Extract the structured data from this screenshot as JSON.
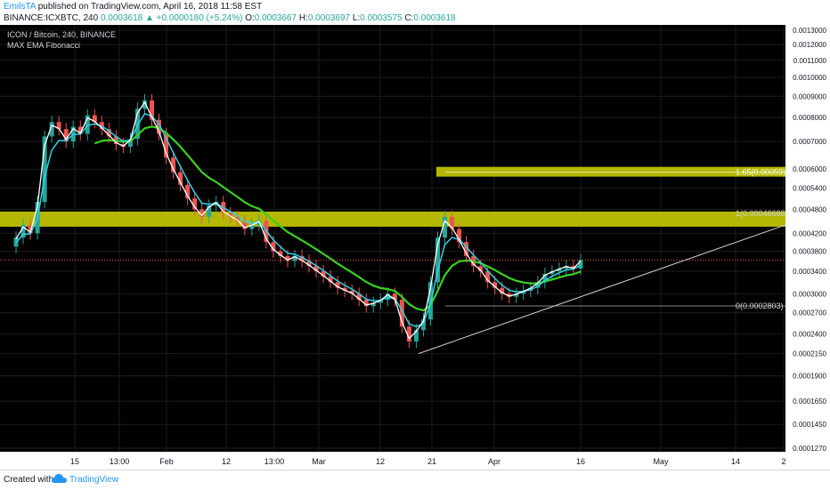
{
  "header": {
    "author": "EmilsTA",
    "published_text": " published on TradingView.com, April 16, 2018 11:58 EST",
    "symbol": "BINANCE:ICXBTC, 240",
    "last_price": "0.0003618",
    "change": "+0.0000180 (+5.24%)",
    "o_label": "O:",
    "o_value": "0.0003667",
    "h_label": "H:",
    "h_value": "0.0003697",
    "l_label": "L:",
    "l_value": "0.0003575",
    "c_label": "C:",
    "c_value": "0.0003618"
  },
  "footer": {
    "created_label": "Created with",
    "brand": "TradingView"
  },
  "colors": {
    "background": "#000000",
    "grid": "#1c1c1c",
    "up_candle": "#26a69a",
    "down_candle": "#ef5350",
    "ema_fast": "#ffffff",
    "ema_mid": "#2dd4e6",
    "ema_slow": "#3ad11f",
    "fib_zone": "#b5b800",
    "trendline": "#cccccc",
    "price_line": "#ef5350"
  },
  "chart_data": {
    "type": "candlestick",
    "title": "ICON / Bitcoin, 240, BINANCE",
    "indicator": "MAX EMA Fibonacci",
    "y_scale": "log",
    "ylim": [
      0.000119,
      0.000134
    ],
    "y_ticks": [
      "0.0013000",
      "0.0012000",
      "0.0011000",
      "0.0010000",
      "0.0009000",
      "0.0008000",
      "0.0007000",
      "0.0006000",
      "0.0005400",
      "0.0004800",
      "0.0004200",
      "0.0003800",
      "0.0003400",
      "0.0003000",
      "0.0002700",
      "0.0002400",
      "0.0002150",
      "0.0001900",
      "0.0001650",
      "0.0001450",
      "0.0001270"
    ],
    "x_ticks": [
      "15",
      "13:00",
      "Feb",
      "12",
      "13:00",
      "Mar",
      "12",
      "21",
      "Apr",
      "16",
      "May",
      "14",
      "2"
    ],
    "current_price": "0.0003618",
    "fib_levels": [
      {
        "label": "1.65(0.00059)",
        "value": 0.00059
      },
      {
        "label": "1(0.00046688)",
        "value": 0.00046688
      },
      {
        "label": "0(0.0002803)",
        "value": 0.0002803
      }
    ],
    "trendline": {
      "from_price": 0.000215,
      "to_price": 0.00044
    },
    "series": [
      {
        "name": "close",
        "values": [
          0.00039,
          0.00041,
          0.00044,
          0.00042,
          0.0005,
          0.00072,
          0.00078,
          0.00075,
          0.0007,
          0.00076,
          0.00073,
          0.00081,
          0.00078,
          0.00075,
          0.00072,
          0.00069,
          0.00068,
          0.00071,
          0.00084,
          0.00088,
          0.00079,
          0.00073,
          0.00064,
          0.00059,
          0.00055,
          0.00051,
          0.00048,
          0.00046,
          0.00049,
          0.0005,
          0.00047,
          0.00046,
          0.00045,
          0.00043,
          0.00044,
          0.00045,
          0.0004,
          0.00038,
          0.00037,
          0.00036,
          0.00037,
          0.00036,
          0.00035,
          0.00034,
          0.00033,
          0.00032,
          0.00031,
          0.000305,
          0.0003,
          0.00029,
          0.00028,
          0.000285,
          0.00029,
          0.0003,
          0.00029,
          0.00025,
          0.00023,
          0.000245,
          0.00026,
          0.00032,
          0.00041,
          0.00046,
          0.00043,
          0.0004,
          0.00037,
          0.00035,
          0.00034,
          0.00032,
          0.00031,
          0.0003,
          0.000295,
          0.0003,
          0.000305,
          0.00031,
          0.00032,
          0.000335,
          0.00034,
          0.000345,
          0.00035,
          0.000345,
          0.000362
        ]
      }
    ]
  }
}
